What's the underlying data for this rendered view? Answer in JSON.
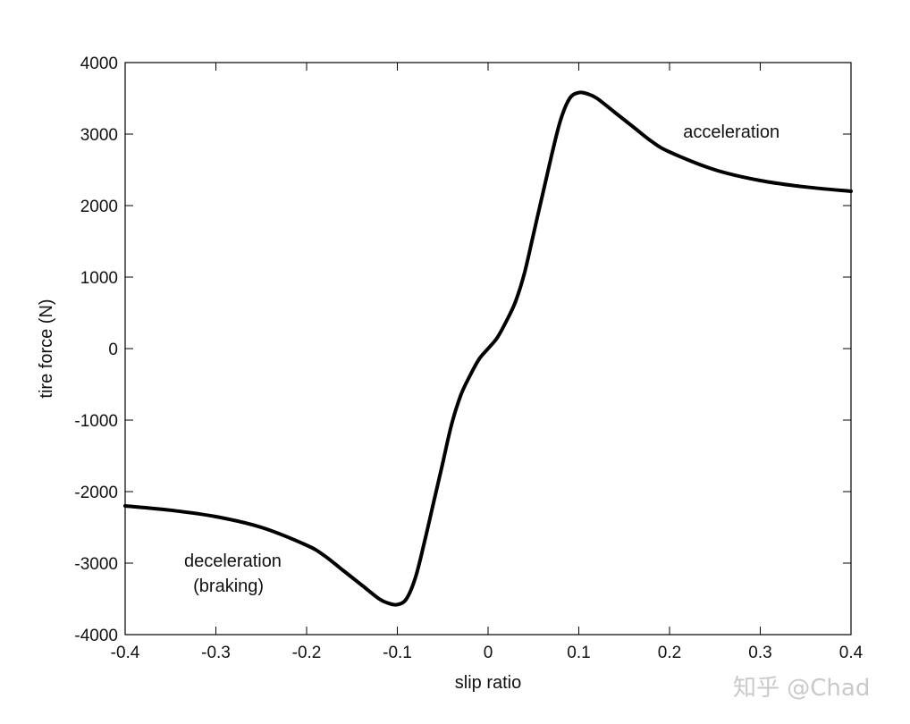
{
  "chart_data": {
    "type": "line",
    "xlabel": "slip ratio",
    "ylabel": "tire force (N)",
    "xlim": [
      -0.4,
      0.4
    ],
    "ylim": [
      -4000,
      4000
    ],
    "xticks": [
      -0.4,
      -0.3,
      -0.2,
      -0.1,
      0,
      0.1,
      0.2,
      0.3,
      0.4
    ],
    "xtick_labels": [
      "-0.4",
      "-0.3",
      "-0.2",
      "-0.1",
      "0",
      "0.1",
      "0.2",
      "0.3",
      "0.4"
    ],
    "yticks": [
      -4000,
      -3000,
      -2000,
      -1000,
      0,
      1000,
      2000,
      3000,
      4000
    ],
    "ytick_labels": [
      "-4000",
      "-3000",
      "-2000",
      "-1000",
      "0",
      "1000",
      "2000",
      "3000",
      "4000"
    ],
    "grid": false,
    "series": [
      {
        "x": [
          -0.4,
          -0.35,
          -0.3,
          -0.25,
          -0.2,
          -0.18,
          -0.16,
          -0.14,
          -0.12,
          -0.11,
          -0.1,
          -0.09,
          -0.08,
          -0.07,
          -0.06,
          -0.05,
          -0.04,
          -0.03,
          -0.02,
          -0.01,
          0,
          0.01,
          0.02,
          0.03,
          0.04,
          0.05,
          0.06,
          0.07,
          0.08,
          0.09,
          0.1,
          0.11,
          0.12,
          0.14,
          0.16,
          0.18,
          0.2,
          0.25,
          0.3,
          0.35,
          0.4
        ],
        "y": [
          -2200,
          -2260,
          -2350,
          -2500,
          -2750,
          -2900,
          -3100,
          -3300,
          -3500,
          -3560,
          -3580,
          -3500,
          -3200,
          -2700,
          -2150,
          -1600,
          -1050,
          -650,
          -380,
          -150,
          0,
          150,
          380,
          650,
          1050,
          1600,
          2150,
          2700,
          3200,
          3500,
          3580,
          3560,
          3500,
          3300,
          3100,
          2900,
          2750,
          2500,
          2350,
          2260,
          2200
        ]
      }
    ],
    "annotations": [
      {
        "text": "acceleration",
        "x": 0.215,
        "y": 2950
      },
      {
        "text": "deceleration",
        "x": -0.335,
        "y": -3050
      },
      {
        "text": "(braking)",
        "x": -0.325,
        "y": -3400
      }
    ]
  },
  "watermark": "知乎 @Chad"
}
